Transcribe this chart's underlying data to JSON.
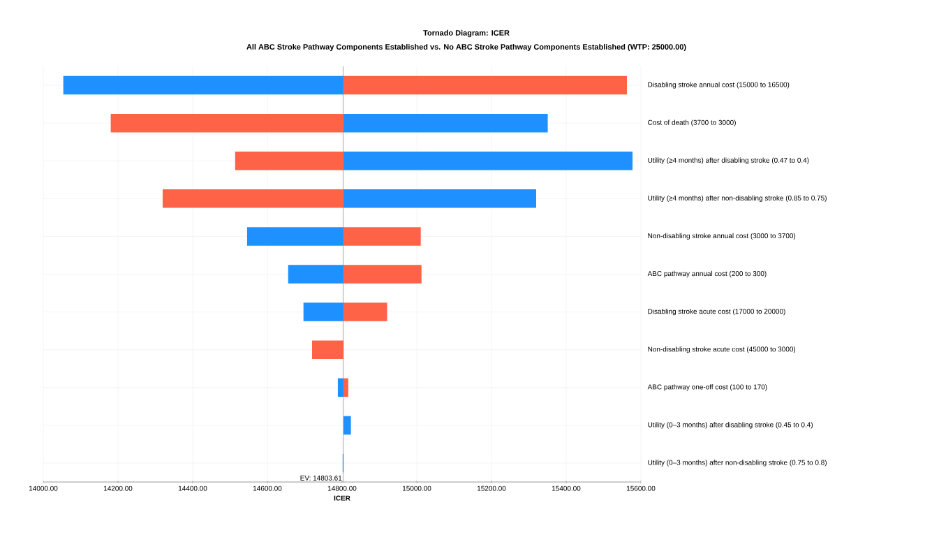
{
  "chart_data": {
    "type": "bar",
    "orientation": "horizontal",
    "title": "Tornado Diagram: ICER",
    "subtitle": "All ABC Stroke Pathway Components Established vs. No ABC Stroke Pathway Components Established (WTP: 25000.00)",
    "xlabel": "ICER",
    "categories": [
      "Disabling stroke annual cost (15000 to 16500)",
      "Cost of death (3700 to 3000)",
      "Utility (≥4 months) after disabling stroke (0.47 to 0.4)",
      "Utility (≥4 months) after non-disabling stroke (0.85 to 0.75)",
      "Non-disabling stroke annual cost (3000 to 3700)",
      "ABC pathway annual cost (200 to 300)",
      "Disabling stroke acute cost (17000 to 20000)",
      "Non-disabling stroke acute cost (45000 to 3000)",
      "ABC pathway one-off cost (100 to 170)",
      "Utility (0–3 months) after disabling stroke (0.45 to 0.4)",
      "Utility (0–3 months) after non-disabling stroke (0.75 to 0.8)"
    ],
    "series": [
      {
        "color": "#1e90ff",
        "base": [
          14803.61,
          14803.61,
          14803.61,
          14803.61,
          14803.61,
          14803.61,
          14803.61,
          null,
          14803.61,
          14803.61,
          14803.61
        ],
        "values": [
          -750,
          547,
          774,
          516,
          -258,
          -148,
          -107,
          null,
          -15,
          20,
          -2
        ]
      },
      {
        "color": "#ff6347",
        "base": [
          14803.61,
          14803.61,
          14803.61,
          14803.61,
          14803.61,
          14803.61,
          14803.61,
          14803.61,
          14803.61,
          null,
          null
        ],
        "values": [
          759,
          -623,
          -290,
          -484,
          207,
          209,
          117,
          -84,
          13,
          null,
          null
        ]
      }
    ],
    "xlim": [
      14000,
      15600
    ],
    "xticks": [
      {
        "value": 14000,
        "label": "14000.00"
      },
      {
        "value": 14200,
        "label": "14200.00"
      },
      {
        "value": 14400,
        "label": "14400.00"
      },
      {
        "value": 14600,
        "label": "14600.00"
      },
      {
        "value": 14800,
        "label": "14800.00"
      },
      {
        "value": 15000,
        "label": "15000.00"
      },
      {
        "value": 15200,
        "label": "15200.00"
      },
      {
        "value": 15400,
        "label": "15400.00"
      },
      {
        "value": 15600,
        "label": "15600.00"
      }
    ],
    "ref_lines": [
      {
        "axis": "x",
        "value": 14803.61,
        "label": "EV: 14803.61",
        "color": "#aaaaaa"
      }
    ],
    "grid": true
  }
}
